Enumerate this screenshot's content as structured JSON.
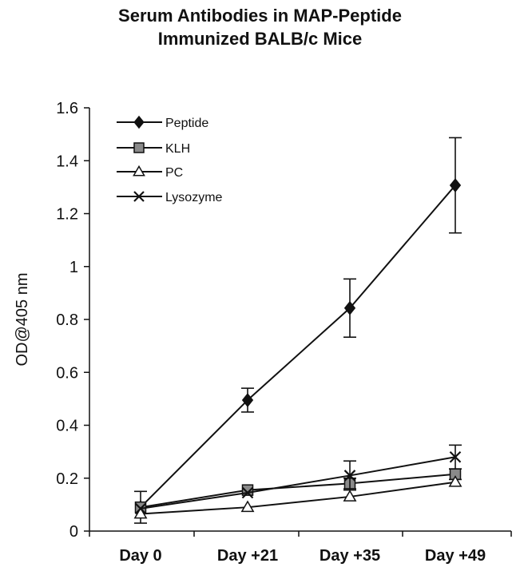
{
  "chart_data": {
    "type": "line",
    "title": "Serum Antibodies in MAP-Peptide",
    "subtitle": "Immunized BALB/c Mice",
    "xlabel": "",
    "ylabel": "OD@405 nm",
    "categories": [
      "Day 0",
      "Day +21",
      "Day +35",
      "Day +49"
    ],
    "ylim": [
      0,
      1.6
    ],
    "yticks": [
      "0",
      "0.2",
      "0.4",
      "0.6",
      "0.8",
      "1",
      "1.2",
      "1.4",
      "1.6"
    ],
    "legend_position": "top-left",
    "grid": false,
    "series": [
      {
        "name": "Peptide",
        "marker": "diamond",
        "values": [
          0.09,
          0.495,
          0.843,
          1.307
        ],
        "error": [
          0.06,
          0.045,
          0.11,
          0.18
        ]
      },
      {
        "name": "KLH",
        "marker": "square",
        "values": [
          0.09,
          0.155,
          0.18,
          0.215
        ],
        "error": [
          0.01,
          0.01,
          0.02,
          0.02
        ]
      },
      {
        "name": "PC",
        "marker": "triangle",
        "values": [
          0.065,
          0.09,
          0.13,
          0.185
        ],
        "error": [
          0.01,
          0.01,
          0.01,
          0.01
        ]
      },
      {
        "name": "Lysozyme",
        "marker": "x",
        "values": [
          0.085,
          0.145,
          0.21,
          0.28
        ],
        "error": [
          0.01,
          0.01,
          0.055,
          0.045
        ]
      }
    ]
  }
}
